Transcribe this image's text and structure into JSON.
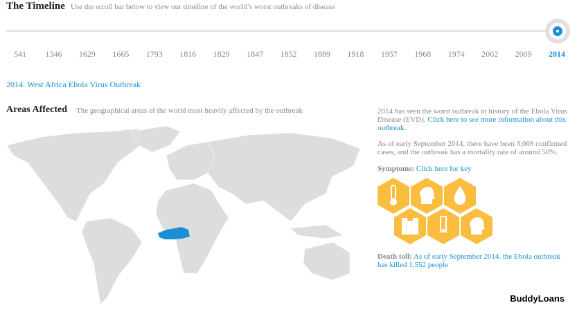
{
  "timeline": {
    "title": "The Timeline",
    "subtitle": "Use the scroll bar below to view our timeline of the world’s worst outbreaks of disease",
    "years": [
      "541",
      "1346",
      "1629",
      "1665",
      "1793",
      "1816",
      "1829",
      "1847",
      "1852",
      "1889",
      "1918",
      "1957",
      "1968",
      "1974",
      "2002",
      "2009",
      "2014"
    ],
    "selected": "2014"
  },
  "outbreak_title": "2014: West Africa Ebola Virus Outbreak",
  "areas": {
    "title": "Areas Affected",
    "subtitle": "The geographical areas of the world most heavily affected by the outbreak"
  },
  "info": {
    "p1": "2014 has seen the worst outbreak in history of the Ebola Virus Disease (EVD).",
    "p1_link": "Click here to see more information about this outbreak.",
    "p2": "As of early September 2014, there have been 3,069 confirmed cases, and the outbreak has a mortality rate of around 50%.",
    "symptoms_label": "Symptoms:",
    "symptoms_link": "Click here for key",
    "symptoms": [
      "thermometer-icon",
      "headache-icon",
      "drop-icon",
      "weight-scale-icon",
      "battery-fatigue-icon",
      "sore-throat-icon"
    ],
    "death_label": "Death toll:",
    "death_text": "As of early September 2014, the Ebola outbreak has killed 1,552 people"
  },
  "brand": "BuddyLoans",
  "colors": {
    "accent": "#1a8fd6",
    "hex": "#fbbd3f",
    "land": "#dddddd"
  }
}
